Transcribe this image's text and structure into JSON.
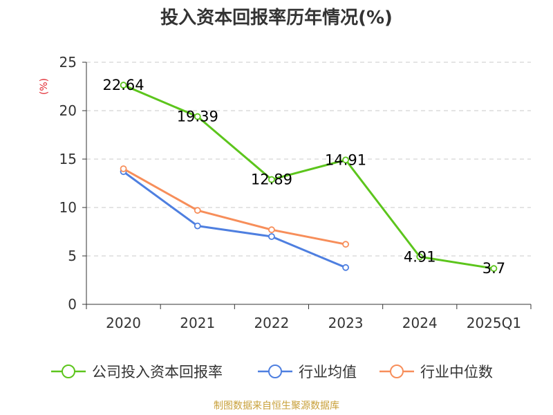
{
  "chart_data": {
    "type": "line",
    "title": "投入资本回报率历年情况(%)",
    "ylabel": "(%)",
    "categories": [
      "2020",
      "2021",
      "2022",
      "2023",
      "2024",
      "2025Q1"
    ],
    "y_ticks": [
      "0",
      "5",
      "10",
      "15",
      "20",
      "25"
    ],
    "ylim": [
      0,
      25
    ],
    "grid": true,
    "legend_position": "bottom",
    "series": [
      {
        "name": "公司投入资本回报率",
        "color": "#5cc51c",
        "values": [
          22.64,
          19.39,
          12.89,
          14.91,
          4.91,
          3.7
        ],
        "labels": [
          "22.64",
          "19.39",
          "12.89",
          "14.91",
          "4.91",
          "3.7"
        ]
      },
      {
        "name": "行业均值",
        "color": "#4e7fe0",
        "values": [
          13.7,
          8.1,
          7.0,
          3.8,
          null,
          null
        ]
      },
      {
        "name": "行业中位数",
        "color": "#f78e5a",
        "values": [
          14.0,
          9.7,
          7.7,
          6.2,
          null,
          null
        ]
      }
    ]
  },
  "source": "制图数据来自恒生聚源数据库"
}
